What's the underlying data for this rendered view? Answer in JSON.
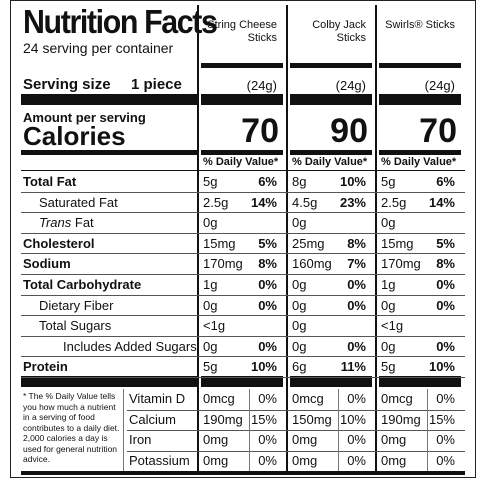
{
  "title": "Nutrition Facts",
  "servings_text": "24 serving per container",
  "serving_size_label": "Serving size",
  "serving_size_value": "1 piece",
  "amount_per_serving": "Amount per serving",
  "calories_label": "Calories",
  "dv_header": "% Daily Value*",
  "products": [
    {
      "name": "String Cheese Sticks",
      "serving_grams": "(24g)",
      "calories": "70"
    },
    {
      "name": "Colby Jack Sticks",
      "serving_grams": "(24g)",
      "calories": "90"
    },
    {
      "name": "Swirls® Sticks",
      "serving_grams": "(24g)",
      "calories": "70"
    }
  ],
  "nutrients": [
    {
      "label": "Total Fat",
      "style": "bold",
      "values": [
        [
          "5g",
          "6%"
        ],
        [
          "8g",
          "10%"
        ],
        [
          "5g",
          "6%"
        ]
      ]
    },
    {
      "label": "Saturated Fat",
      "style": "indent",
      "values": [
        [
          "2.5g",
          "14%"
        ],
        [
          "4.5g",
          "23%"
        ],
        [
          "2.5g",
          "14%"
        ]
      ]
    },
    {
      "label_italic": "Trans",
      "label": "Fat",
      "style": "indent-trans",
      "values": [
        [
          "0g",
          ""
        ],
        [
          "0g",
          ""
        ],
        [
          "0g",
          ""
        ]
      ]
    },
    {
      "label": "Cholesterol",
      "style": "bold",
      "values": [
        [
          "15mg",
          "5%"
        ],
        [
          "25mg",
          "8%"
        ],
        [
          "15mg",
          "5%"
        ]
      ]
    },
    {
      "label": "Sodium",
      "style": "bold",
      "values": [
        [
          "170mg",
          "8%"
        ],
        [
          "160mg",
          "7%"
        ],
        [
          "170mg",
          "8%"
        ]
      ]
    },
    {
      "label": "Total Carbohydrate",
      "style": "bold",
      "values": [
        [
          "1g",
          "0%"
        ],
        [
          "0g",
          "0%"
        ],
        [
          "1g",
          "0%"
        ]
      ]
    },
    {
      "label": "Dietary Fiber",
      "style": "indent",
      "values": [
        [
          "0g",
          "0%"
        ],
        [
          "0g",
          "0%"
        ],
        [
          "0g",
          "0%"
        ]
      ]
    },
    {
      "label": "Total Sugars",
      "style": "indent",
      "values": [
        [
          "<1g",
          ""
        ],
        [
          "0g",
          ""
        ],
        [
          "<1g",
          ""
        ]
      ]
    },
    {
      "label": "Includes Added Sugars",
      "style": "indent2",
      "values": [
        [
          "0g",
          "0%"
        ],
        [
          "0g",
          "0%"
        ],
        [
          "0g",
          "0%"
        ]
      ]
    },
    {
      "label": "Protein",
      "style": "bold",
      "values": [
        [
          "5g",
          "10%"
        ],
        [
          "6g",
          "11%"
        ],
        [
          "5g",
          "10%"
        ]
      ]
    }
  ],
  "footnote": "* The % Daily Value tells you how much a nutrient in a serving of food contributes to a daily diet. 2,000 calories a day is used for general nutrition advice.",
  "vitamins": [
    {
      "label": "Vitamin D",
      "values": [
        [
          "0mcg",
          "0%"
        ],
        [
          "0mcg",
          "0%"
        ],
        [
          "0mcg",
          "0%"
        ]
      ]
    },
    {
      "label": "Calcium",
      "values": [
        [
          "190mg",
          "15%"
        ],
        [
          "150mg",
          "10%"
        ],
        [
          "190mg",
          "15%"
        ]
      ]
    },
    {
      "label": "Iron",
      "values": [
        [
          "0mg",
          "0%"
        ],
        [
          "0mg",
          "0%"
        ],
        [
          "0mg",
          "0%"
        ]
      ]
    },
    {
      "label": "Potassium",
      "values": [
        [
          "0mg",
          "0%"
        ],
        [
          "0mg",
          "0%"
        ],
        [
          "0mg",
          "0%"
        ]
      ]
    }
  ]
}
